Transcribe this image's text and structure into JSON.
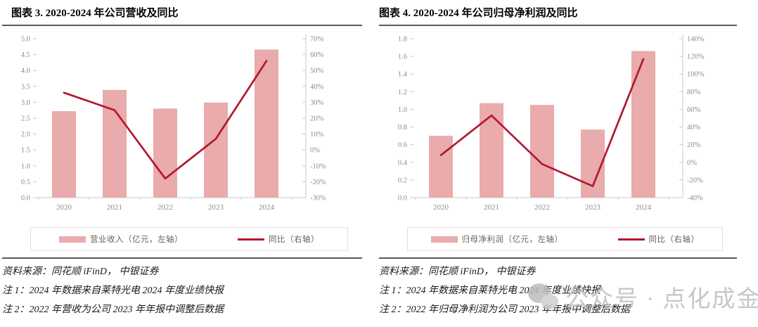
{
  "colors": {
    "bar": "#e9abab",
    "line": "#b2182f",
    "axis_line": "#c9c9c9",
    "axis_text": "#8c8c8c",
    "rule": "#5a5a5a",
    "legend_border": "#e9dede",
    "legend_text": "#6d5f5f",
    "watermark": "#c7c7c7"
  },
  "watermark": {
    "icon": "wechat-icon",
    "text": "公众号 · 点化成金"
  },
  "panels": [
    {
      "title": "图表 3. 2020-2024 年公司营收及同比",
      "legend": [
        {
          "swatch": "bar",
          "label": "营业收入（亿元，左轴）"
        },
        {
          "swatch": "line",
          "label": "同比（右轴）"
        }
      ],
      "source": "资料来源：同花顺 iFinD， 中银证券",
      "notes": [
        "注 1：2024 年数据来自莱特光电 2024 年度业绩快报",
        "注 2：2022 年营收为公司 2023 年年报中调整后数据"
      ]
    },
    {
      "title": "图表 4. 2020-2024 年公司归母净利润及同比",
      "legend": [
        {
          "swatch": "bar",
          "label": "归母净利润（亿元，左轴）"
        },
        {
          "swatch": "line",
          "label": "同比（右轴）"
        }
      ],
      "source": "资料来源：同花顺 iFinD， 中银证券",
      "notes": [
        "注 1：2024 年数据来自莱特光电 2024 年度业绩快报",
        "注 2：2022 年归母净利润为公司 2023 年年报中调整后数据"
      ]
    }
  ],
  "chart_data": [
    {
      "type": "bar",
      "title": "图表 3. 2020-2024 年公司营收及同比",
      "categories": [
        "2020",
        "2021",
        "2022",
        "2023",
        "2024"
      ],
      "series": [
        {
          "name": "营业收入（亿元，左轴）",
          "type": "bar",
          "axis": "left",
          "values": [
            2.72,
            3.39,
            2.8,
            2.99,
            4.66
          ]
        },
        {
          "name": "同比（右轴）",
          "type": "line",
          "axis": "right",
          "unit": "%",
          "values": [
            36,
            25,
            -18,
            7,
            56
          ]
        }
      ],
      "left_axis": {
        "min": 0.0,
        "max": 5.0,
        "step": 0.5,
        "decimals": 1
      },
      "right_axis": {
        "min": -30,
        "max": 70,
        "step": 10,
        "suffix": "%"
      },
      "grid": false,
      "legend_position": "bottom"
    },
    {
      "type": "bar",
      "title": "图表 4. 2020-2024 年公司归母净利润及同比",
      "categories": [
        "2020",
        "2021",
        "2022",
        "2023",
        "2024"
      ],
      "series": [
        {
          "name": "归母净利润（亿元，左轴）",
          "type": "bar",
          "axis": "left",
          "values": [
            0.7,
            1.07,
            1.05,
            0.77,
            1.66
          ]
        },
        {
          "name": "同比（右轴）",
          "type": "line",
          "axis": "right",
          "unit": "%",
          "values": [
            8,
            53,
            -2,
            -27,
            117
          ]
        }
      ],
      "left_axis": {
        "min": 0.0,
        "max": 1.8,
        "step": 0.2,
        "decimals": 1
      },
      "right_axis": {
        "min": -40,
        "max": 140,
        "step": 20,
        "suffix": "%"
      },
      "grid": false,
      "legend_position": "bottom"
    }
  ]
}
